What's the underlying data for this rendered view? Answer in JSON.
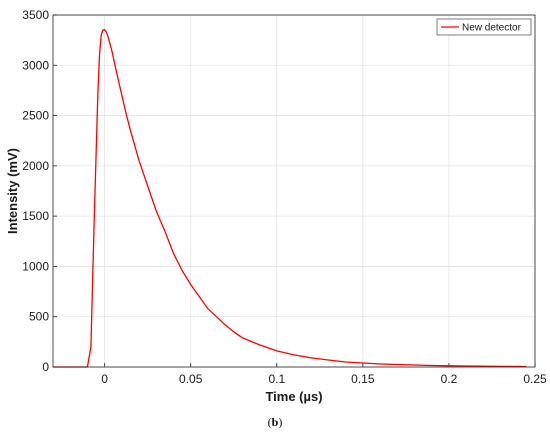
{
  "caption": {
    "open": "(",
    "letter": "b",
    "close": ")"
  },
  "chart_data": {
    "type": "line",
    "xlabel": "Time (µs)",
    "ylabel": "Intensity (mV)",
    "xlim": [
      -0.03,
      0.25
    ],
    "ylim": [
      0,
      3500
    ],
    "xticks": [
      0,
      0.05,
      0.1,
      0.15,
      0.2,
      0.25
    ],
    "xtick_labels": [
      "0",
      "0.05",
      "0.1",
      "0.15",
      "0.2",
      "0.25"
    ],
    "yticks": [
      0,
      500,
      1000,
      1500,
      2000,
      2500,
      3000,
      3500
    ],
    "ytick_labels": [
      "0",
      "500",
      "1000",
      "1500",
      "2000",
      "2500",
      "3000",
      "3500"
    ],
    "grid": true,
    "legend_position": "top-right",
    "series": [
      {
        "name": "New detector",
        "color": "#ff0000",
        "x": [
          -0.03,
          -0.01,
          -0.008,
          -0.006,
          -0.004,
          -0.003,
          -0.002,
          -0.001,
          0,
          0.001,
          0.002,
          0.003,
          0.004,
          0.006,
          0.008,
          0.01,
          0.012,
          0.015,
          0.02,
          0.025,
          0.03,
          0.035,
          0.04,
          0.045,
          0.05,
          0.055,
          0.06,
          0.065,
          0.07,
          0.075,
          0.08,
          0.09,
          0.1,
          0.11,
          0.12,
          0.13,
          0.14,
          0.15,
          0.16,
          0.17,
          0.18,
          0.19,
          0.2,
          0.21,
          0.22,
          0.23,
          0.245
        ],
        "y": [
          0,
          0,
          200,
          1500,
          2700,
          3100,
          3300,
          3350,
          3355,
          3330,
          3280,
          3220,
          3160,
          3000,
          2850,
          2700,
          2550,
          2350,
          2050,
          1800,
          1550,
          1350,
          1130,
          960,
          820,
          700,
          580,
          500,
          420,
          350,
          290,
          220,
          160,
          120,
          90,
          70,
          50,
          40,
          30,
          25,
          20,
          15,
          12,
          10,
          8,
          6,
          5
        ]
      }
    ]
  }
}
